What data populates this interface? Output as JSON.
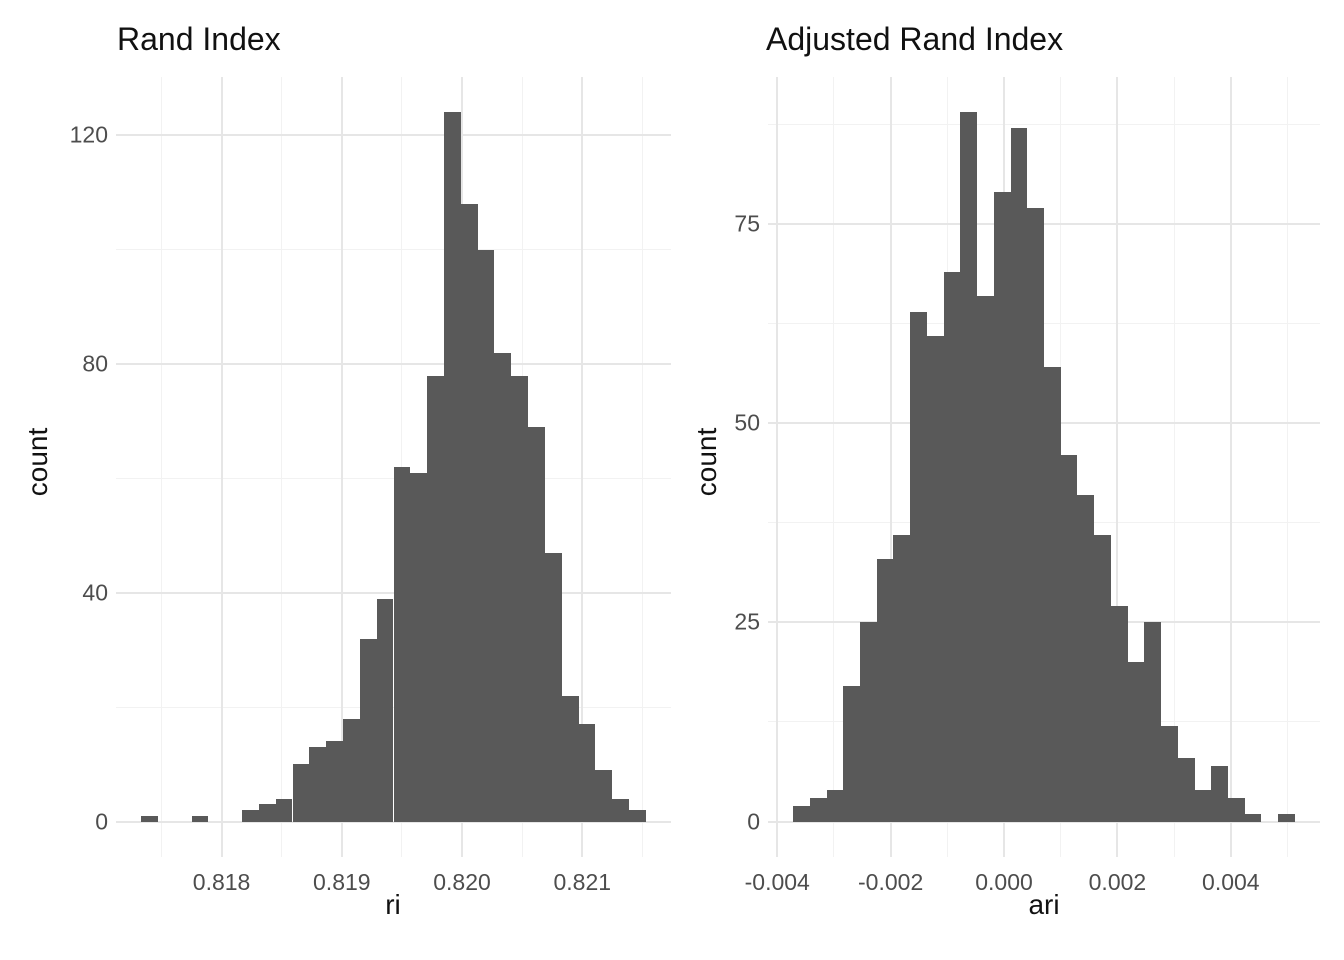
{
  "style": {
    "background": "#FFFFFF",
    "bar_color": "#595959",
    "grid_major_color": "#E6E6E6",
    "grid_minor_color": "#F2F2F2",
    "tick_label_color": "#4D4D4D",
    "text_color": "#111111"
  },
  "chart_data": [
    {
      "type": "bar",
      "subtype": "histogram",
      "title": "Rand Index",
      "xlabel": "ri",
      "ylabel": "count",
      "bar_color": "#595959",
      "grid": true,
      "legend": false,
      "total_n": 1000,
      "bins": {
        "start": 0.81733,
        "width": 0.00014
      },
      "counts": [
        1,
        0,
        0,
        1,
        0,
        0,
        2,
        3,
        4,
        10,
        13,
        14,
        18,
        32,
        39,
        62,
        61,
        78,
        124,
        108,
        100,
        82,
        78,
        69,
        47,
        22,
        17,
        9,
        4,
        2
      ],
      "x_axis": {
        "min": 0.817122,
        "max": 0.821738,
        "major_ticks": [
          0.818,
          0.819,
          0.82,
          0.821
        ],
        "tick_labels": [
          "0.818",
          "0.819",
          "0.820",
          "0.821"
        ],
        "minor_ticks": [
          0.8175,
          0.8185,
          0.8195,
          0.8205,
          0.8215
        ]
      },
      "y_axis": {
        "min": -6.2,
        "max": 130.2,
        "major_ticks": [
          0,
          40,
          80,
          120
        ],
        "tick_labels": [
          "0",
          "40",
          "80",
          "120"
        ],
        "minor_ticks": [
          20,
          60,
          100
        ]
      }
    },
    {
      "type": "bar",
      "subtype": "histogram",
      "title": "Adjusted Rand Index",
      "xlabel": "ari",
      "ylabel": "count",
      "bar_color": "#595959",
      "grid": true,
      "legend": false,
      "total_n": 1000,
      "bins": {
        "start": -0.00372,
        "width": 0.000295
      },
      "counts": [
        2,
        3,
        4,
        17,
        25,
        33,
        36,
        64,
        61,
        69,
        89,
        66,
        79,
        87,
        77,
        57,
        46,
        41,
        36,
        27,
        20,
        25,
        12,
        8,
        4,
        7,
        3,
        1,
        0,
        1
      ],
      "x_axis": {
        "min": -0.004163,
        "max": 0.005573,
        "major_ticks": [
          -0.004,
          -0.002,
          0.0,
          0.002,
          0.004
        ],
        "tick_labels": [
          "-0.004",
          "-0.002",
          "0.000",
          "0.002",
          "0.004"
        ],
        "minor_ticks": [
          -0.003,
          -0.001,
          0.001,
          0.003,
          0.005
        ]
      },
      "y_axis": {
        "min": -4.45,
        "max": 93.45,
        "major_ticks": [
          0,
          25,
          50,
          75
        ],
        "tick_labels": [
          "0",
          "25",
          "50",
          "75"
        ],
        "minor_ticks": [
          12.5,
          37.5,
          62.5,
          87.5
        ]
      }
    }
  ]
}
